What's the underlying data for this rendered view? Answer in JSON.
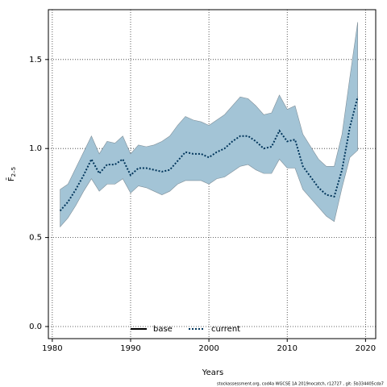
{
  "chart_data": {
    "type": "ribbon-line",
    "x_label": "Years",
    "y_label": "F̄",
    "y_label_sub": "2–5",
    "footer": "stockassessment.org, cod4a WGCSE 1A 2019nocatch, r12727 , git: 5b334405cda7",
    "x": [
      1981,
      1982,
      1983,
      1984,
      1985,
      1986,
      1987,
      1988,
      1989,
      1990,
      1991,
      1992,
      1993,
      1994,
      1995,
      1996,
      1997,
      1998,
      1999,
      2000,
      2001,
      2002,
      2003,
      2004,
      2005,
      2006,
      2007,
      2008,
      2009,
      2010,
      2011,
      2012,
      2013,
      2014,
      2015,
      2016,
      2017,
      2018,
      2019
    ],
    "series": [
      {
        "name": "current",
        "color": "#00355b",
        "band_color": "#a3c4d6",
        "values": [
          0.65,
          0.7,
          0.77,
          0.85,
          0.94,
          0.86,
          0.91,
          0.91,
          0.94,
          0.85,
          0.89,
          0.89,
          0.88,
          0.87,
          0.88,
          0.93,
          0.98,
          0.97,
          0.97,
          0.95,
          0.98,
          1.0,
          1.04,
          1.07,
          1.07,
          1.04,
          1.0,
          1.01,
          1.1,
          1.04,
          1.05,
          0.9,
          0.84,
          0.78,
          0.74,
          0.73,
          0.88,
          1.12,
          1.29
        ],
        "upper": [
          0.77,
          0.8,
          0.89,
          0.98,
          1.07,
          0.97,
          1.04,
          1.03,
          1.07,
          0.97,
          1.02,
          1.01,
          1.02,
          1.04,
          1.07,
          1.13,
          1.18,
          1.16,
          1.15,
          1.13,
          1.16,
          1.19,
          1.24,
          1.29,
          1.28,
          1.24,
          1.19,
          1.2,
          1.3,
          1.22,
          1.24,
          1.08,
          1.01,
          0.94,
          0.9,
          0.9,
          1.08,
          1.4,
          1.71
        ],
        "lower": [
          0.56,
          0.61,
          0.68,
          0.76,
          0.83,
          0.76,
          0.8,
          0.8,
          0.83,
          0.75,
          0.79,
          0.78,
          0.76,
          0.74,
          0.76,
          0.8,
          0.82,
          0.82,
          0.82,
          0.8,
          0.83,
          0.84,
          0.87,
          0.9,
          0.91,
          0.88,
          0.86,
          0.86,
          0.94,
          0.89,
          0.89,
          0.77,
          0.72,
          0.67,
          0.62,
          0.59,
          0.78,
          0.95,
          0.99
        ]
      }
    ],
    "legend": [
      {
        "label": "base",
        "color": "#000000",
        "dash": "solid"
      },
      {
        "label": "current",
        "color": "#00355b",
        "dash": "dotted"
      }
    ],
    "xlim": [
      1979.5,
      2021.3
    ],
    "xticks": [
      1980,
      1990,
      2000,
      2010,
      2020
    ],
    "ylim": [
      -0.068,
      1.78
    ],
    "yticks": [
      {
        "value": 0,
        "label": "0.0"
      },
      0.5,
      {
        "value": 1,
        "label": "1.0"
      },
      1.5
    ],
    "grid": true
  }
}
